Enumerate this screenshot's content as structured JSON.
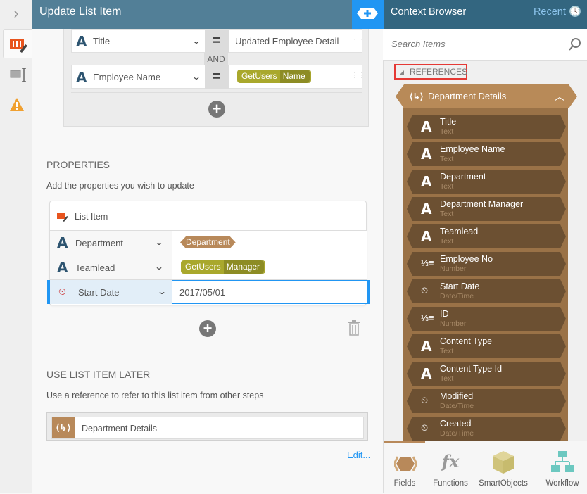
{
  "header": {
    "title": "Update List Item"
  },
  "filters": [
    {
      "field": "Title",
      "operator": "=",
      "value": "Updated Employee Detail"
    },
    {
      "field": "Employee Name",
      "operator": "=",
      "value_ref": {
        "source": "GetUsers",
        "property": "Name"
      }
    }
  ],
  "filter_conjunction": "AND",
  "properties": {
    "heading": "PROPERTIES",
    "description": "Add the properties you wish to update",
    "list_label": "List Item",
    "rows": [
      {
        "name": "Department",
        "type": "text",
        "ref": "Department"
      },
      {
        "name": "Teamlead",
        "type": "text",
        "ref_source": "GetUsers",
        "ref_property": "Manager"
      },
      {
        "name": "Start Date",
        "type": "datetime",
        "value": "2017/05/01"
      }
    ]
  },
  "later": {
    "heading": "USE LIST ITEM LATER",
    "description": "Use a reference to refer to this list item from other steps",
    "reference": "Department Details",
    "edit_link": "Edit..."
  },
  "context": {
    "title": "Context Browser",
    "recent": "Recent",
    "search_placeholder": "Search Items",
    "references_label": "REFERENCES",
    "group": "Department Details",
    "items": [
      {
        "name": "Title",
        "type": "Text"
      },
      {
        "name": "Employee Name",
        "type": "Text"
      },
      {
        "name": "Department",
        "type": "Text"
      },
      {
        "name": "Department Manager",
        "type": "Text"
      },
      {
        "name": "Teamlead",
        "type": "Text"
      },
      {
        "name": "Employee No",
        "type": "Number"
      },
      {
        "name": "Start Date",
        "type": "Date/Time"
      },
      {
        "name": "ID",
        "type": "Number"
      },
      {
        "name": "Content Type",
        "type": "Text"
      },
      {
        "name": "Content Type Id",
        "type": "Text"
      },
      {
        "name": "Modified",
        "type": "Date/Time"
      },
      {
        "name": "Created",
        "type": "Date/Time"
      }
    ],
    "tabs": [
      {
        "label": "Fields",
        "active": true
      },
      {
        "label": "Functions"
      },
      {
        "label": "SmartObjects"
      },
      {
        "label": "Workflow"
      }
    ]
  },
  "colors": {
    "header": "#527f97",
    "accent": "#2196f3",
    "reference": "#b88a58",
    "smartobject_chip": "#a9a82c"
  }
}
